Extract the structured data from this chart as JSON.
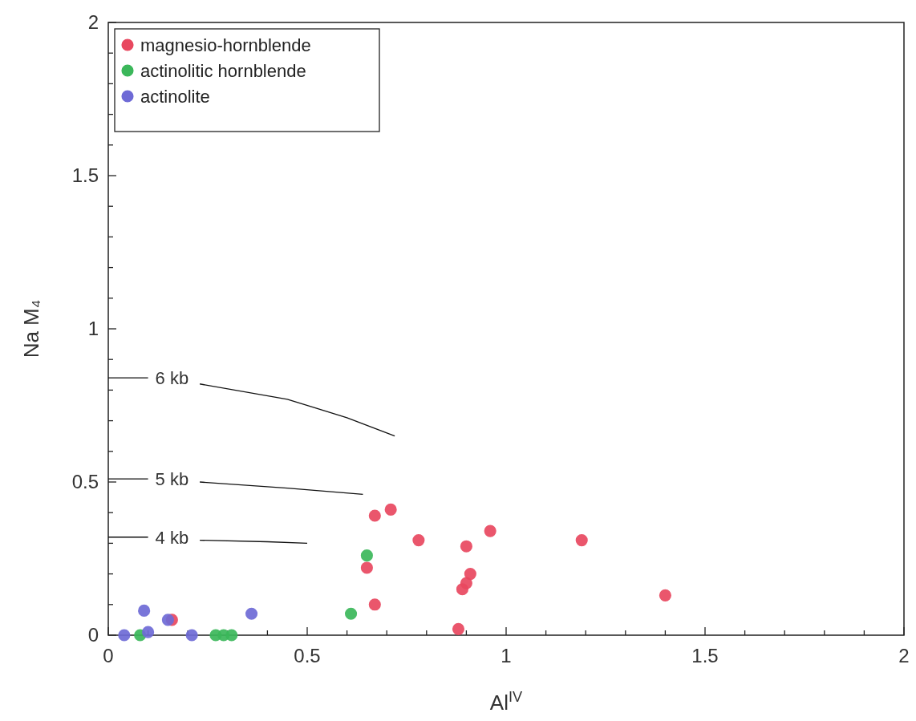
{
  "chart_data": {
    "type": "scatter",
    "xlabel": "Al$^{IV}$",
    "ylabel": "Na M₄",
    "xlim": [
      0,
      2
    ],
    "ylim": [
      0,
      2
    ],
    "xticks": [
      0,
      {
        "value": 0.1,
        "label": null
      },
      {
        "value": 0.2,
        "label": null
      },
      {
        "value": 0.3,
        "label": null
      },
      {
        "value": 0.4,
        "label": null
      },
      0.5,
      {
        "value": 0.6,
        "label": null
      },
      {
        "value": 0.7,
        "label": null
      },
      {
        "value": 0.8,
        "label": null
      },
      {
        "value": 0.9,
        "label": null
      },
      1,
      {
        "value": 1.1,
        "label": null
      },
      {
        "value": 1.2,
        "label": null
      },
      {
        "value": 1.3,
        "label": null
      },
      {
        "value": 1.4,
        "label": null
      },
      1.5,
      {
        "value": 1.6,
        "label": null
      },
      {
        "value": 1.7,
        "label": null
      },
      {
        "value": 1.8,
        "label": null
      },
      {
        "value": 1.9,
        "label": null
      },
      2
    ],
    "yticks": [
      0,
      {
        "value": 0.1,
        "label": null
      },
      {
        "value": 0.2,
        "label": null
      },
      {
        "value": 0.3,
        "label": null
      },
      {
        "value": 0.4,
        "label": null
      },
      0.5,
      {
        "value": 0.6,
        "label": null
      },
      {
        "value": 0.7,
        "label": null
      },
      {
        "value": 0.8,
        "label": null
      },
      {
        "value": 0.9,
        "label": null
      },
      1,
      {
        "value": 1.1,
        "label": null
      },
      {
        "value": 1.2,
        "label": null
      },
      {
        "value": 1.3,
        "label": null
      },
      {
        "value": 1.4,
        "label": null
      },
      1.5,
      {
        "value": 1.6,
        "label": null
      },
      {
        "value": 1.7,
        "label": null
      },
      {
        "value": 1.8,
        "label": null
      },
      {
        "value": 1.9,
        "label": null
      },
      2
    ],
    "grid": false,
    "legend": "top left",
    "marker": "circle",
    "series": [
      {
        "name": "magnesio-hornblende",
        "color": "#e8485f",
        "x": [
          0.16,
          0.65,
          0.67,
          0.67,
          0.71,
          0.78,
          0.88,
          0.9,
          0.89,
          0.9,
          0.91,
          0.96,
          1.19,
          1.4
        ],
        "values": [
          0.05,
          0.22,
          0.1,
          0.39,
          0.41,
          0.31,
          0.02,
          0.29,
          0.15,
          0.17,
          0.2,
          0.34,
          0.31,
          0.13
        ]
      },
      {
        "name": "actinolitic hornblende",
        "color": "#3bb75a",
        "x": [
          0.08,
          0.27,
          0.29,
          0.31,
          0.61,
          0.65
        ],
        "values": [
          0,
          0,
          0,
          0,
          0.07,
          0.26
        ]
      },
      {
        "name": "actinolite",
        "color": "#6e6ad6",
        "x": [
          0.04,
          0.09,
          0.1,
          0.15,
          0.21,
          0.36
        ],
        "values": [
          0,
          0.08,
          0.01,
          0.05,
          0,
          0.07
        ]
      },
      {
        "name": "6 kb",
        "type": "line",
        "color": "#111111",
        "marker": "none",
        "x": [
          0,
          0.1,
          0.16,
          0.23,
          0.45,
          0.6,
          0.72
        ],
        "values": [
          0.84,
          0.84,
          null,
          0.82,
          0.77,
          0.71,
          0.65
        ]
      },
      {
        "name": "5 kb",
        "type": "line",
        "color": "#111111",
        "marker": "none",
        "x": [
          0,
          0.1,
          0.16,
          0.23,
          0.45,
          0.64
        ],
        "values": [
          0.51,
          0.51,
          null,
          0.5,
          0.48,
          0.46
        ]
      },
      {
        "name": "4 kb",
        "type": "line",
        "color": "#111111",
        "marker": "none",
        "x": [
          0,
          0.1,
          0.16,
          0.23,
          0.4,
          0.5
        ],
        "values": [
          0.32,
          0.32,
          null,
          0.31,
          0.305,
          0.3
        ]
      }
    ]
  }
}
